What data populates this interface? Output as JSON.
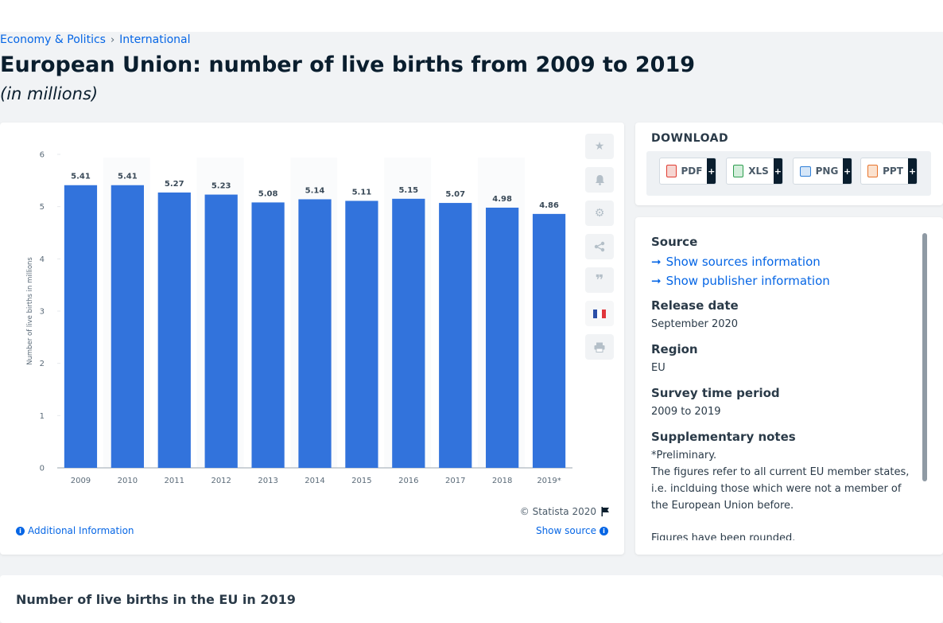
{
  "breadcrumb": {
    "item1": "Economy & Politics",
    "separator": "›",
    "item2": "International"
  },
  "page": {
    "title": "European Union: number of live births from 2009 to 2019",
    "subtitle": "(in millions)"
  },
  "colors": {
    "bar": "#3273dc",
    "link": "#0666e5"
  },
  "chart_data": {
    "type": "bar",
    "categories": [
      "2009",
      "2010",
      "2011",
      "2012",
      "2013",
      "2014",
      "2015",
      "2016",
      "2017",
      "2018",
      "2019*"
    ],
    "values": [
      5.41,
      5.41,
      5.27,
      5.23,
      5.08,
      5.14,
      5.11,
      5.15,
      5.07,
      4.98,
      4.86
    ],
    "value_labels": [
      "5.41",
      "5.41",
      "5.27",
      "5.23",
      "5.08",
      "5.14",
      "5.11",
      "5.15",
      "5.07",
      "4.98",
      "4.86"
    ],
    "ylabel": "Number of live births in millions",
    "ylim": [
      0,
      6
    ],
    "yticks": [
      "0",
      "1",
      "2",
      "3",
      "4",
      "5",
      "6"
    ],
    "grid": false
  },
  "chart_footer": {
    "copyright": "© Statista 2020",
    "additional_info": "Additional Information",
    "show_source": "Show source"
  },
  "tools": {
    "icons": [
      "star-icon",
      "bell-icon",
      "gear-icon",
      "share-icon",
      "quote-icon",
      "flag-fr-icon",
      "print-icon"
    ]
  },
  "download": {
    "title": "DOWNLOAD",
    "buttons": [
      {
        "label": "PDF",
        "plus": "+",
        "color": "#e03c31"
      },
      {
        "label": "XLS",
        "plus": "+",
        "color": "#2e9e4f"
      },
      {
        "label": "PNG",
        "plus": "+",
        "color": "#2f7fd8"
      },
      {
        "label": "PPT",
        "plus": "+",
        "color": "#e8742c"
      }
    ]
  },
  "meta": {
    "source_heading": "Source",
    "show_sources": "Show sources information",
    "show_publisher": "Show publisher information",
    "release_heading": "Release date",
    "release_value": "September 2020",
    "region_heading": "Region",
    "region_value": "EU",
    "survey_heading": "Survey time period",
    "survey_value": "2009 to 2019",
    "supp_heading": "Supplementary notes",
    "supp_line1": "*Preliminary.",
    "supp_line2": "The figures refer to all current EU member states, i.e. inclduing those which were not a member of the European Union before.",
    "supp_line3": "Figures have been rounded."
  },
  "bottom": {
    "title": "Number of live births in the EU in 2019"
  }
}
